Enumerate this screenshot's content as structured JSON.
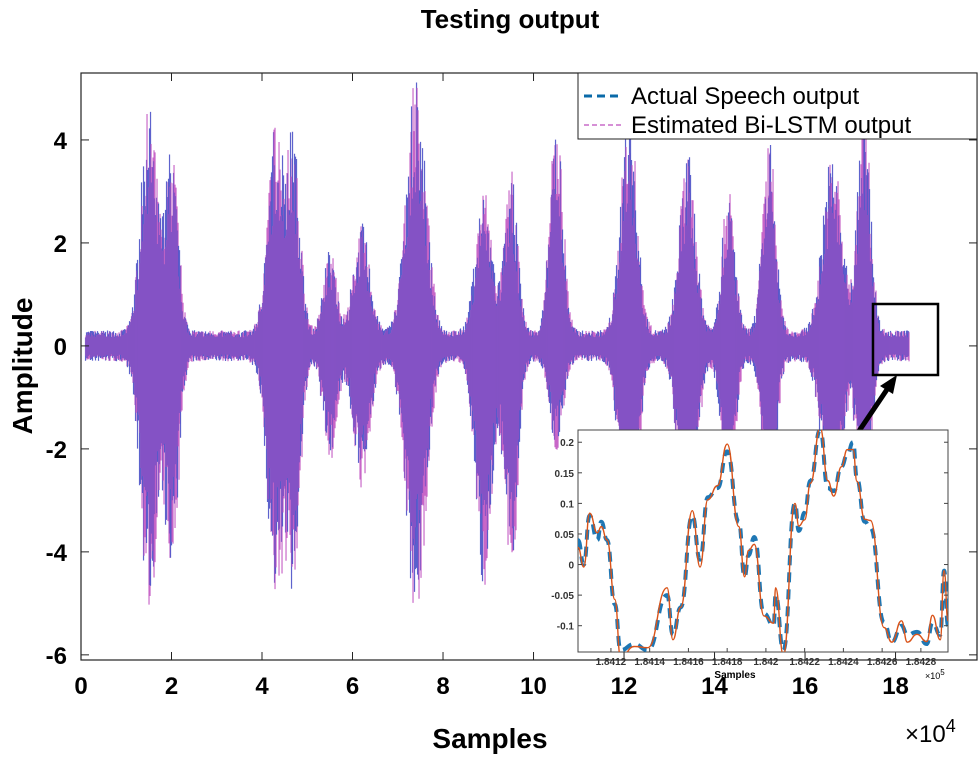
{
  "chart_data": {
    "type": "line",
    "title": "Testing output",
    "xlabel": "Samples",
    "ylabel": "Amplitude",
    "x_multiplier": "×10",
    "x_multiplier_exp": "4",
    "xlim": [
      0,
      19.8
    ],
    "ylim": [
      -6.1,
      5.3
    ],
    "xticks": [
      "0",
      "2",
      "4",
      "6",
      "8",
      "10",
      "12",
      "14",
      "16",
      "18"
    ],
    "xtick_values": [
      0,
      2,
      4,
      6,
      8,
      10,
      12,
      14,
      16,
      18
    ],
    "yticks": [
      "4",
      "2",
      "0",
      "-2",
      "-4",
      "-6"
    ],
    "ytick_values": [
      4,
      2,
      0,
      -2,
      -4,
      -6
    ],
    "grid": false,
    "legend_position": "top-right",
    "legend": [
      {
        "label": "Actual Speech output",
        "color": "#0a6aa8",
        "style": "dashed"
      },
      {
        "label": "Estimated Bi-LSTM output",
        "color": "#c86cc8",
        "style": "dashed"
      }
    ],
    "signal_range": [
      0.1,
      18.3
    ],
    "baseline_amplitude": 0.3,
    "envelope_bursts": [
      {
        "center": 1.5,
        "width": 0.25,
        "max": 4.4,
        "min": -4.9
      },
      {
        "center": 2.0,
        "width": 0.2,
        "max": 3.5,
        "min": -4.3
      },
      {
        "center": 4.3,
        "width": 0.25,
        "max": 4.1,
        "min": -4.6
      },
      {
        "center": 4.7,
        "width": 0.2,
        "max": 3.6,
        "min": -4.2
      },
      {
        "center": 5.5,
        "width": 0.2,
        "max": 1.6,
        "min": -2.0
      },
      {
        "center": 6.2,
        "width": 0.25,
        "max": 2.1,
        "min": -2.5
      },
      {
        "center": 7.4,
        "width": 0.3,
        "max": 5.0,
        "min": -5.0
      },
      {
        "center": 8.9,
        "width": 0.25,
        "max": 2.8,
        "min": -4.4
      },
      {
        "center": 9.5,
        "width": 0.2,
        "max": 3.1,
        "min": -4.3
      },
      {
        "center": 10.5,
        "width": 0.2,
        "max": 4.3,
        "min": -1.8
      },
      {
        "center": 12.1,
        "width": 0.25,
        "max": 4.4,
        "min": -4.5
      },
      {
        "center": 13.4,
        "width": 0.25,
        "max": 3.5,
        "min": -4.5
      },
      {
        "center": 14.3,
        "width": 0.2,
        "max": 2.8,
        "min": -3.0
      },
      {
        "center": 15.2,
        "width": 0.2,
        "max": 3.8,
        "min": -3.5
      },
      {
        "center": 16.6,
        "width": 0.3,
        "max": 3.5,
        "min": -3.2
      },
      {
        "center": 17.3,
        "width": 0.2,
        "max": 4.4,
        "min": -3.6
      }
    ],
    "inset": {
      "xlabel": "Samples",
      "x_multiplier": "×10",
      "x_multiplier_exp": "5",
      "xlim": [
        184103,
        184294
      ],
      "ylim": [
        -0.143,
        0.22
      ],
      "xticks": [
        "1.8412",
        "1.8414",
        "1.8416",
        "1.8418",
        "1.842",
        "1.8422",
        "1.8424",
        "1.8426",
        "1.8428"
      ],
      "xtick_values": [
        184120,
        184140,
        184160,
        184180,
        184200,
        184220,
        184240,
        184260,
        184280
      ],
      "yticks": [
        "0.2",
        "0.15",
        "0.1",
        "0.05",
        "0",
        "-0.05",
        "-0.1"
      ],
      "ytick_values": [
        0.2,
        0.15,
        0.1,
        0.05,
        0,
        -0.05,
        -0.1
      ],
      "x": [
        184103,
        184106,
        184109,
        184113,
        184115,
        184118,
        184122,
        184125,
        184132,
        184139,
        184149,
        184152,
        184156,
        184162,
        184166,
        184170,
        184175,
        184180,
        184186,
        184189,
        184191,
        184194,
        184199,
        184204,
        184205,
        184209,
        184215,
        184217,
        184220,
        184223,
        184228,
        184232,
        184235,
        184239,
        184242,
        184245,
        184247,
        184251,
        184254,
        184261,
        184265,
        184270,
        184273,
        184278,
        184283,
        184286,
        184290,
        184292,
        184294
      ],
      "actual": [
        0.04,
        0,
        0.08,
        0.04,
        0.07,
        0.04,
        -0.065,
        -0.14,
        -0.13,
        -0.14,
        -0.05,
        -0.115,
        -0.07,
        0.08,
        0.008,
        0.11,
        0.125,
        0.185,
        0.07,
        -0.02,
        0.015,
        0.045,
        -0.08,
        -0.1,
        -0.05,
        -0.14,
        0.1,
        0.055,
        0.085,
        0.137,
        0.22,
        0.125,
        0.12,
        0.16,
        0.18,
        0.2,
        0.14,
        0.07,
        0.06,
        -0.095,
        -0.127,
        -0.1,
        -0.115,
        -0.11,
        -0.13,
        -0.095,
        -0.115,
        -0.01,
        -0.1
      ],
      "actual_color": "#1f77b4",
      "estimated_color": "#d95319"
    }
  }
}
